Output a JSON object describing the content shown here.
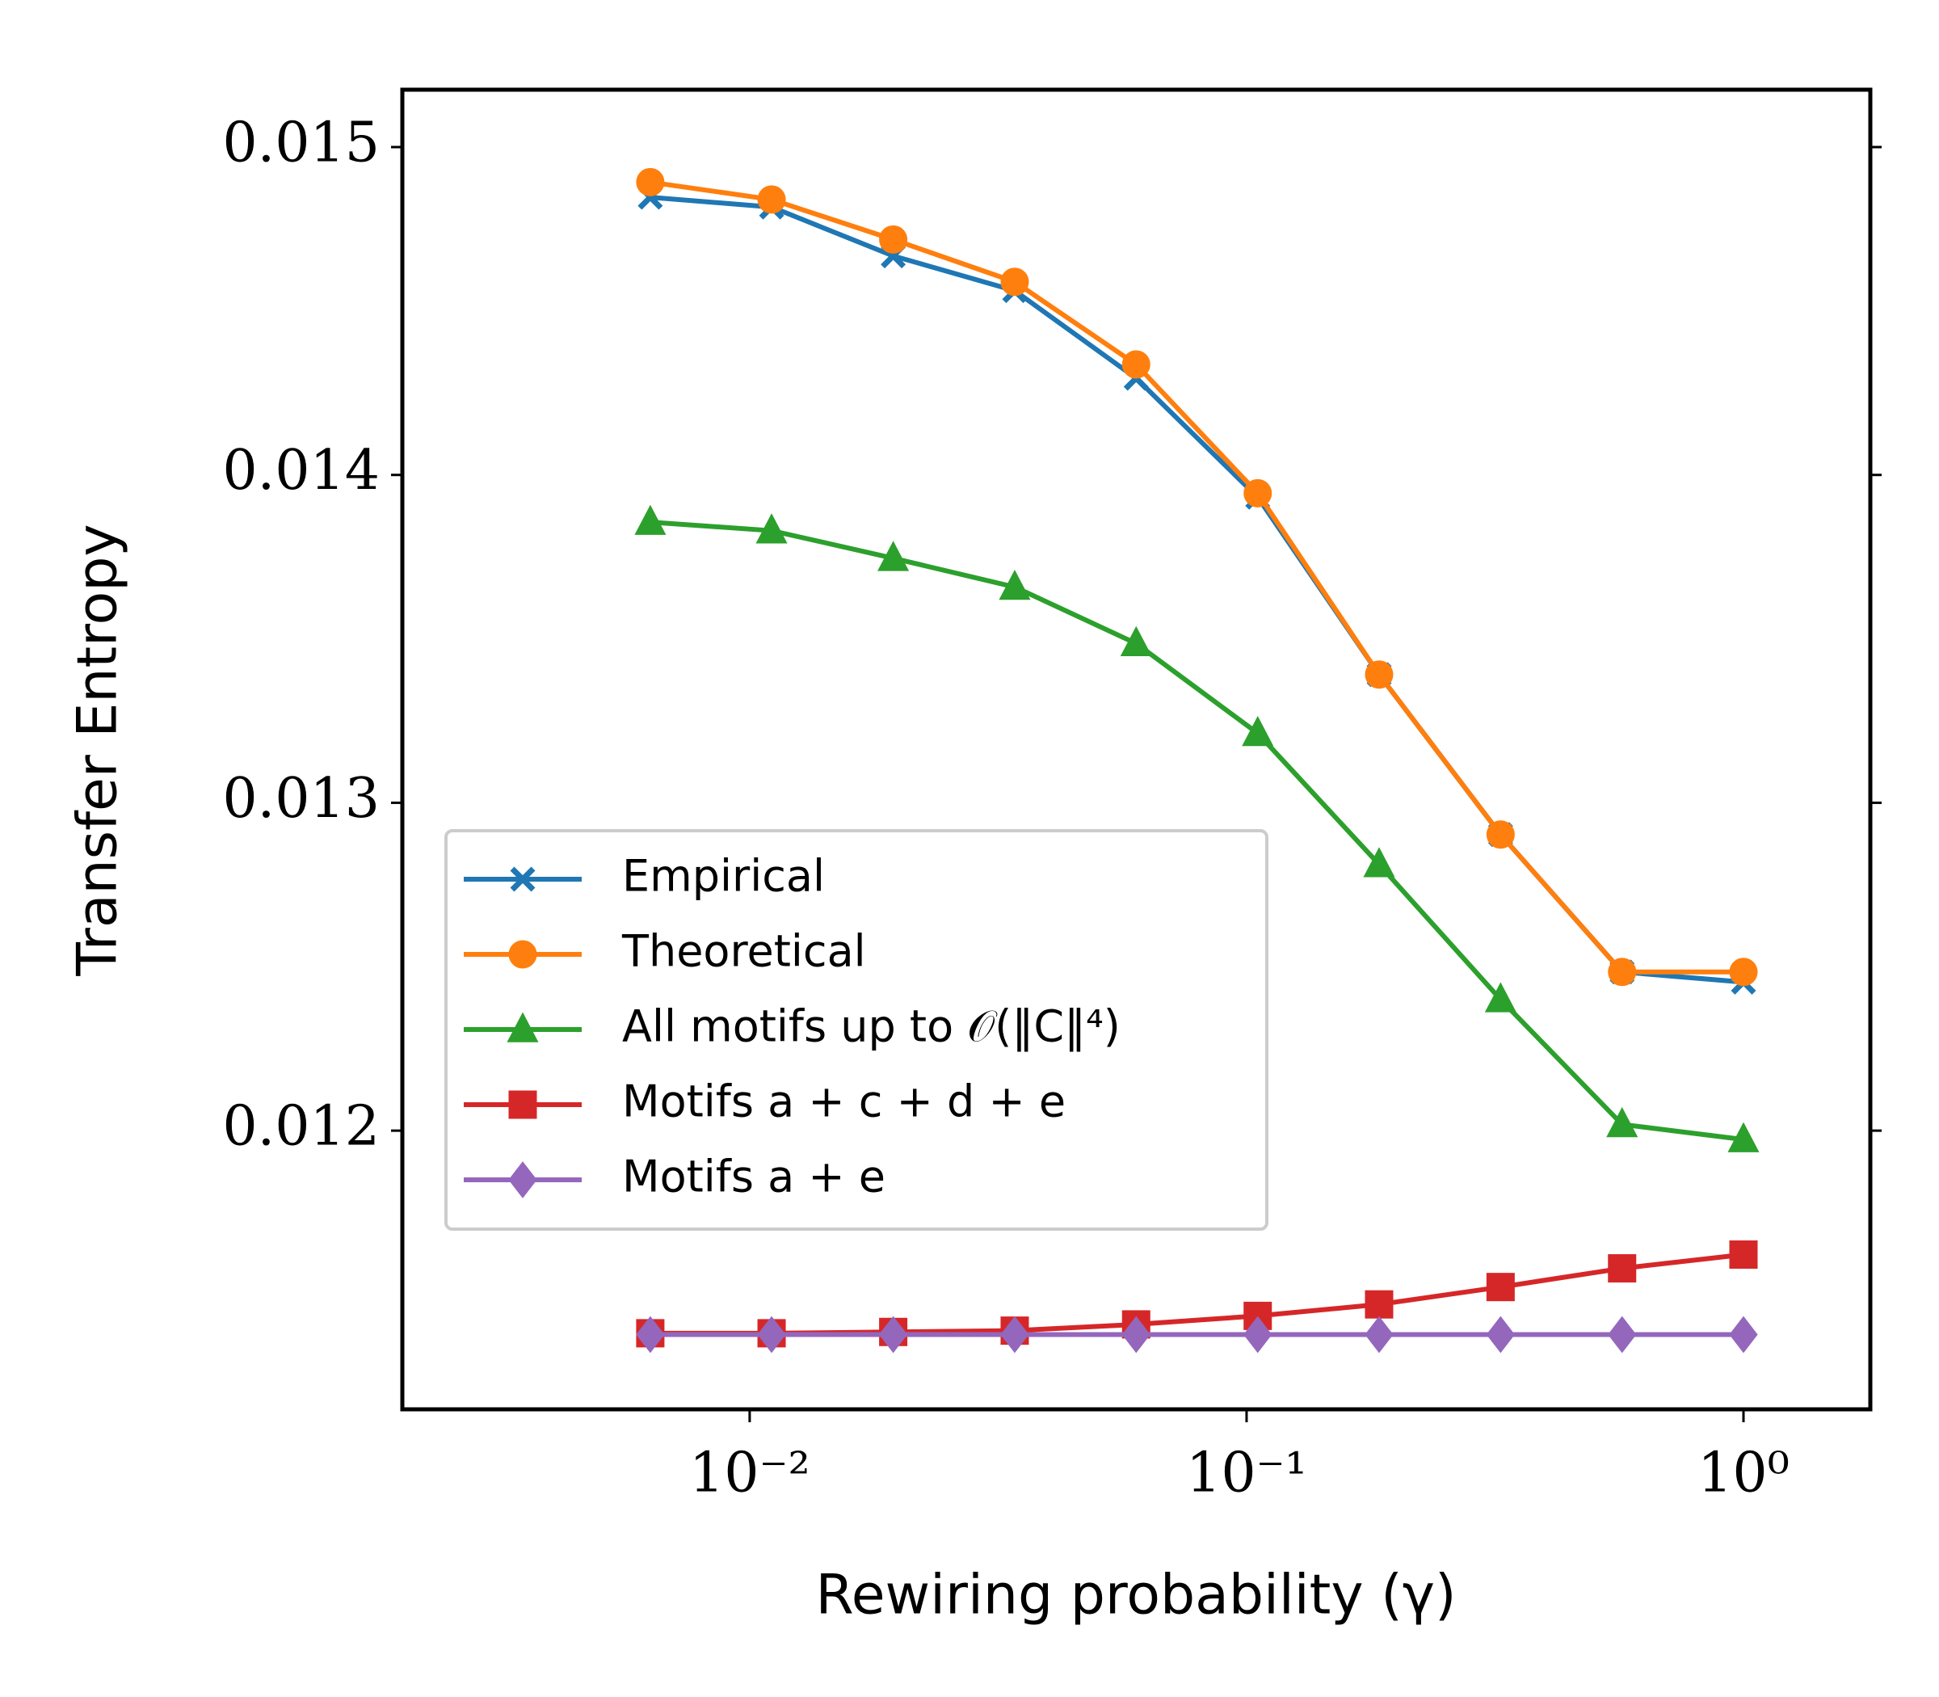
{
  "chart_data": {
    "type": "line",
    "x_label": "Rewiring probability (γ)",
    "y_label": "Transfer Entropy",
    "x": [
      0.00631,
      0.01107,
      0.01945,
      0.03415,
      0.05995,
      0.1053,
      0.1848,
      0.3245,
      0.5698,
      1.0
    ],
    "xlog": true,
    "xlim": [
      0.002,
      1.8
    ],
    "xticks": [
      {
        "value": 0.01,
        "label": "10⁻²"
      },
      {
        "value": 0.1,
        "label": "10⁻¹"
      },
      {
        "value": 1,
        "label": "10⁰"
      }
    ],
    "ylim": [
      0.01115,
      0.015175
    ],
    "yticks": [
      0.012,
      0.013,
      0.014,
      0.015
    ],
    "legend": "center left",
    "series": [
      {
        "name": "Empirical",
        "color": "#1f77b4",
        "marker": "x",
        "values": [
          0.014847,
          0.014817,
          0.014668,
          0.014562,
          0.014295,
          0.013932,
          0.013391,
          0.012903,
          0.012484,
          0.012453
        ]
      },
      {
        "name": "Theoretical",
        "color": "#ff7f0e",
        "marker": "circle",
        "values": [
          0.014893,
          0.01484,
          0.014718,
          0.014589,
          0.014337,
          0.013944,
          0.013391,
          0.012903,
          0.012484,
          0.012484
        ]
      },
      {
        "name": "All motifs up to 𝒪(‖C‖⁴)",
        "color": "#2ca02c",
        "marker": "triangle",
        "values": [
          0.013856,
          0.01383,
          0.013746,
          0.013658,
          0.013486,
          0.013212,
          0.012812,
          0.0124,
          0.012019,
          0.011973
        ]
      },
      {
        "name": "Motifs a + c + d + e",
        "color": "#d62728",
        "marker": "square",
        "values": [
          0.011382,
          0.011382,
          0.011386,
          0.01139,
          0.011409,
          0.011435,
          0.01147,
          0.011523,
          0.01158,
          0.011622
        ]
      },
      {
        "name": "Motifs a + e",
        "color": "#9467bd",
        "marker": "diamond",
        "values": [
          0.011378,
          0.011378,
          0.011378,
          0.011378,
          0.011378,
          0.011378,
          0.011378,
          0.011378,
          0.011378,
          0.011378
        ]
      }
    ]
  }
}
